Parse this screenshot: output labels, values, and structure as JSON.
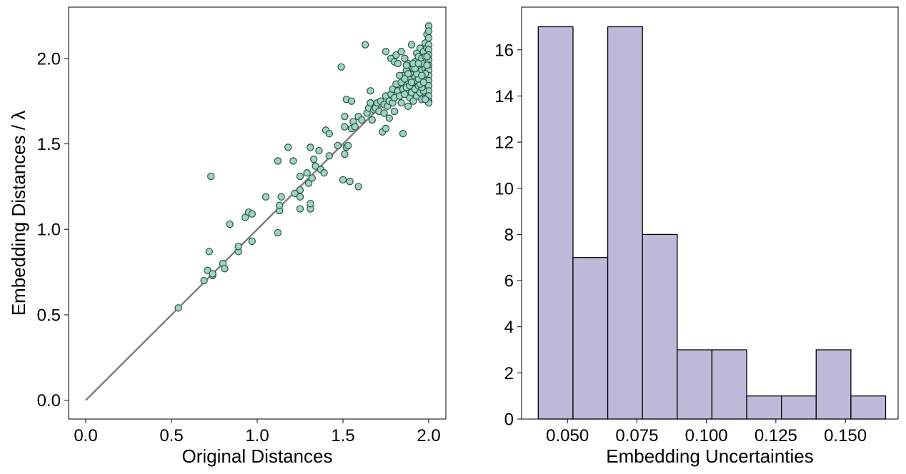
{
  "colors": {
    "scatter_fill": "#99d6c4",
    "scatter_edge": "#2f4f4a",
    "reference_line": "#808080",
    "hist_fill": "#bcb9d9",
    "hist_edge": "#000000"
  },
  "chart_data": [
    {
      "type": "scatter",
      "xlabel": "Original Distances",
      "ylabel": "Embedding Distances / λ",
      "xlim": [
        -0.1,
        2.1
      ],
      "ylim": [
        -0.11,
        2.3
      ],
      "xticks": [
        0.0,
        0.5,
        1.0,
        1.5,
        2.0
      ],
      "yticks": [
        0.0,
        0.5,
        1.0,
        1.5,
        2.0
      ],
      "xtick_labels": [
        "0.0",
        "0.5",
        "1.0",
        "1.5",
        "2.0"
      ],
      "ytick_labels": [
        "0.0",
        "0.5",
        "1.0",
        "1.5",
        "2.0"
      ],
      "grid": false,
      "reference_line": {
        "x": [
          0.0,
          2.0
        ],
        "y": [
          0.0,
          2.0
        ]
      },
      "points": [
        [
          0.54,
          0.54
        ],
        [
          0.69,
          0.7
        ],
        [
          0.71,
          0.76
        ],
        [
          0.72,
          0.87
        ],
        [
          0.73,
          1.31
        ],
        [
          0.74,
          0.73
        ],
        [
          0.74,
          0.74
        ],
        [
          0.8,
          0.8
        ],
        [
          0.81,
          0.77
        ],
        [
          0.84,
          1.03
        ],
        [
          0.89,
          0.87
        ],
        [
          0.89,
          0.9
        ],
        [
          0.93,
          1.07
        ],
        [
          0.95,
          1.1
        ],
        [
          0.97,
          0.93
        ],
        [
          0.97,
          1.09
        ],
        [
          1.05,
          1.19
        ],
        [
          1.12,
          0.98
        ],
        [
          1.12,
          1.4
        ],
        [
          1.13,
          1.11
        ],
        [
          1.13,
          1.14
        ],
        [
          1.14,
          1.19
        ],
        [
          1.18,
          1.48
        ],
        [
          1.21,
          1.4
        ],
        [
          1.22,
          1.21
        ],
        [
          1.25,
          1.12
        ],
        [
          1.25,
          1.19
        ],
        [
          1.25,
          1.23
        ],
        [
          1.25,
          1.31
        ],
        [
          1.29,
          1.33
        ],
        [
          1.3,
          1.27
        ],
        [
          1.31,
          1.12
        ],
        [
          1.31,
          1.15
        ],
        [
          1.31,
          1.48
        ],
        [
          1.32,
          1.3
        ],
        [
          1.33,
          1.41
        ],
        [
          1.34,
          1.37
        ],
        [
          1.36,
          1.46
        ],
        [
          1.37,
          1.35
        ],
        [
          1.39,
          1.33
        ],
        [
          1.4,
          1.58
        ],
        [
          1.42,
          1.56
        ],
        [
          1.42,
          1.43
        ],
        [
          1.47,
          1.49
        ],
        [
          1.49,
          1.95
        ],
        [
          1.5,
          1.29
        ],
        [
          1.51,
          1.44
        ],
        [
          1.51,
          1.6
        ],
        [
          1.52,
          1.48
        ],
        [
          1.51,
          1.66
        ],
        [
          1.52,
          1.76
        ],
        [
          1.53,
          1.49
        ],
        [
          1.54,
          1.28
        ],
        [
          1.55,
          1.75
        ],
        [
          1.55,
          1.59
        ],
        [
          1.56,
          1.63
        ],
        [
          1.57,
          1.6
        ],
        [
          1.59,
          1.25
        ],
        [
          1.59,
          1.66
        ],
        [
          1.61,
          1.64
        ],
        [
          1.63,
          2.08
        ],
        [
          1.64,
          1.68
        ],
        [
          1.65,
          1.71
        ],
        [
          1.66,
          1.81
        ],
        [
          1.66,
          1.74
        ],
        [
          1.67,
          1.64
        ],
        [
          1.68,
          1.7
        ],
        [
          1.69,
          1.71
        ],
        [
          1.7,
          1.74
        ],
        [
          1.71,
          1.69
        ],
        [
          1.72,
          1.75
        ],
        [
          1.73,
          1.57
        ],
        [
          1.74,
          1.73
        ],
        [
          1.74,
          1.68
        ],
        [
          1.75,
          1.78
        ],
        [
          1.75,
          1.59
        ],
        [
          1.75,
          2.04
        ],
        [
          1.76,
          1.72
        ],
        [
          1.77,
          1.75
        ],
        [
          1.77,
          1.65
        ],
        [
          1.78,
          2.0
        ],
        [
          1.78,
          1.79
        ],
        [
          1.79,
          1.82
        ],
        [
          1.79,
          1.74
        ],
        [
          1.8,
          1.77
        ],
        [
          1.8,
          1.98
        ],
        [
          1.8,
          1.69
        ],
        [
          1.81,
          1.85
        ],
        [
          1.81,
          2.02
        ],
        [
          1.82,
          1.81
        ],
        [
          1.82,
          1.97
        ],
        [
          1.83,
          1.78
        ],
        [
          1.84,
          1.86
        ],
        [
          1.84,
          2.04
        ],
        [
          1.84,
          1.74
        ],
        [
          1.85,
          1.56
        ],
        [
          1.85,
          1.9
        ],
        [
          1.85,
          1.82
        ],
        [
          1.86,
          1.79
        ],
        [
          1.86,
          2.0
        ],
        [
          1.87,
          1.93
        ],
        [
          1.87,
          1.83
        ],
        [
          1.88,
          1.87
        ],
        [
          1.88,
          1.72
        ],
        [
          1.88,
          1.97
        ],
        [
          1.89,
          1.84
        ],
        [
          1.89,
          1.89
        ],
        [
          1.89,
          1.77
        ],
        [
          1.9,
          2.08
        ],
        [
          1.9,
          1.91
        ],
        [
          1.9,
          1.8
        ],
        [
          1.91,
          1.94
        ],
        [
          1.91,
          1.86
        ],
        [
          1.91,
          1.75
        ],
        [
          1.92,
          1.98
        ],
        [
          1.92,
          1.89
        ],
        [
          1.92,
          1.82
        ],
        [
          1.93,
          2.03
        ],
        [
          1.93,
          1.95
        ],
        [
          1.93,
          1.87
        ],
        [
          1.93,
          1.78
        ],
        [
          1.94,
          2.01
        ],
        [
          1.94,
          1.92
        ],
        [
          1.94,
          1.84
        ],
        [
          1.95,
          2.06
        ],
        [
          1.95,
          1.96
        ],
        [
          1.95,
          1.89
        ],
        [
          1.95,
          1.8
        ],
        [
          1.96,
          2.0
        ],
        [
          1.96,
          1.93
        ],
        [
          1.96,
          1.86
        ],
        [
          1.96,
          1.76
        ],
        [
          1.97,
          2.04
        ],
        [
          1.97,
          1.97
        ],
        [
          1.97,
          1.9
        ],
        [
          1.97,
          1.83
        ],
        [
          1.98,
          2.09
        ],
        [
          1.98,
          2.01
        ],
        [
          1.98,
          1.94
        ],
        [
          1.98,
          1.87
        ],
        [
          1.98,
          1.8
        ],
        [
          1.99,
          2.14
        ],
        [
          1.99,
          2.06
        ],
        [
          1.99,
          1.99
        ],
        [
          1.99,
          1.92
        ],
        [
          1.99,
          1.85
        ],
        [
          1.99,
          1.77
        ],
        [
          2.0,
          2.19
        ],
        [
          2.0,
          2.16
        ],
        [
          2.0,
          2.12
        ],
        [
          2.0,
          2.08
        ],
        [
          2.0,
          2.05
        ],
        [
          2.0,
          2.02
        ],
        [
          2.0,
          1.99
        ],
        [
          2.0,
          1.96
        ],
        [
          2.0,
          1.93
        ],
        [
          2.0,
          1.9
        ],
        [
          2.0,
          1.87
        ],
        [
          2.0,
          1.84
        ],
        [
          2.0,
          1.81
        ],
        [
          2.0,
          1.78
        ],
        [
          2.0,
          1.75
        ],
        [
          2.0,
          1.74
        ],
        [
          1.98,
          1.76
        ],
        [
          1.97,
          1.81
        ],
        [
          1.96,
          1.83
        ],
        [
          1.95,
          1.85
        ],
        [
          1.94,
          1.88
        ],
        [
          1.93,
          1.91
        ],
        [
          1.92,
          1.94
        ],
        [
          1.91,
          1.97
        ],
        [
          1.99,
          2.01
        ],
        [
          1.99,
          1.96
        ],
        [
          1.98,
          1.91
        ],
        [
          1.97,
          1.86
        ],
        [
          1.96,
          1.9
        ],
        [
          1.94,
          1.97
        ],
        [
          1.9,
          1.86
        ],
        [
          1.88,
          1.91
        ],
        [
          1.86,
          1.88
        ],
        [
          1.83,
          1.9
        ],
        [
          1.87,
          1.96
        ]
      ]
    },
    {
      "type": "bar",
      "xlabel": "Embedding Uncertainties",
      "ylabel": "",
      "xlim": [
        0.0335,
        0.169
      ],
      "ylim": [
        0,
        17.85
      ],
      "xticks": [
        0.05,
        0.075,
        0.1,
        0.125,
        0.15
      ],
      "yticks": [
        0,
        2,
        4,
        6,
        8,
        10,
        12,
        14,
        16
      ],
      "xtick_labels": [
        "0.050",
        "0.075",
        "0.100",
        "0.125",
        "0.150"
      ],
      "ytick_labels": [
        "0",
        "2",
        "4",
        "6",
        "8",
        "10",
        "12",
        "14",
        "16"
      ],
      "grid": false,
      "bin_edges": [
        0.0395,
        0.052,
        0.0645,
        0.077,
        0.0895,
        0.102,
        0.1145,
        0.127,
        0.1395,
        0.152,
        0.1645
      ],
      "counts": [
        17,
        7,
        17,
        8,
        3,
        3,
        1,
        1,
        3,
        1
      ]
    }
  ]
}
